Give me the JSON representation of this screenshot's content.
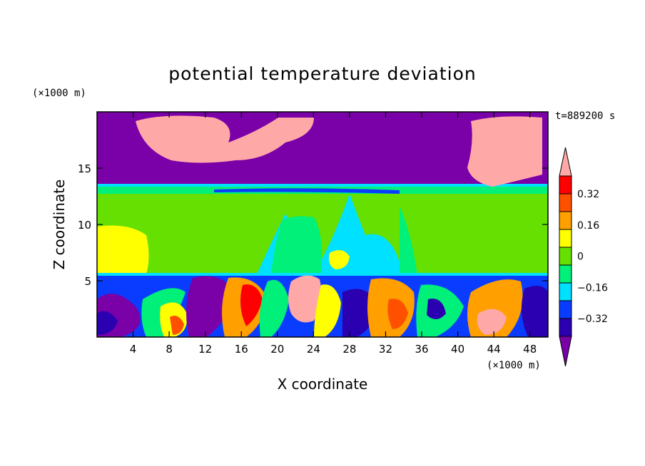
{
  "chart_data": {
    "type": "heatmap",
    "title": "potential temperature deviation",
    "xlabel": "X coordinate",
    "ylabel": "Z coordinate",
    "x_unit": "(×1000 m)",
    "y_unit": "(×1000 m)",
    "time_label": "t=889200 s",
    "xlim": [
      0,
      50
    ],
    "ylim": [
      0,
      20
    ],
    "x_ticks": [
      4,
      8,
      12,
      16,
      20,
      24,
      28,
      32,
      36,
      40,
      44,
      48
    ],
    "y_ticks": [
      5,
      10,
      15
    ],
    "colorbar": {
      "levels": [
        -0.4,
        -0.32,
        -0.24,
        -0.16,
        -0.08,
        0,
        0.08,
        0.16,
        0.24,
        0.32,
        0.4
      ],
      "labels": [
        "0.32",
        "0.16",
        "0",
        "-0.16",
        "-0.32"
      ],
      "label_values": [
        0.32,
        0.16,
        0,
        -0.16,
        -0.32
      ],
      "colors": [
        "#7a00a8",
        "#2a00b0",
        "#0a3cff",
        "#00e0ff",
        "#00f07a",
        "#66e000",
        "#ffff00",
        "#ff9f00",
        "#ff5000",
        "#ff0000",
        "#ffa8a8"
      ]
    },
    "layers": [
      {
        "z_range": [
          13.5,
          20
        ],
        "dominant": -0.4,
        "note_values": [
          0.4
        ]
      },
      {
        "z_range": [
          5.5,
          13.5
        ],
        "dominant": 0.04
      },
      {
        "z_range": [
          0,
          5.5
        ],
        "dominant": -0.3,
        "note_values": [
          0.4,
          0.3,
          0.2
        ]
      }
    ]
  }
}
